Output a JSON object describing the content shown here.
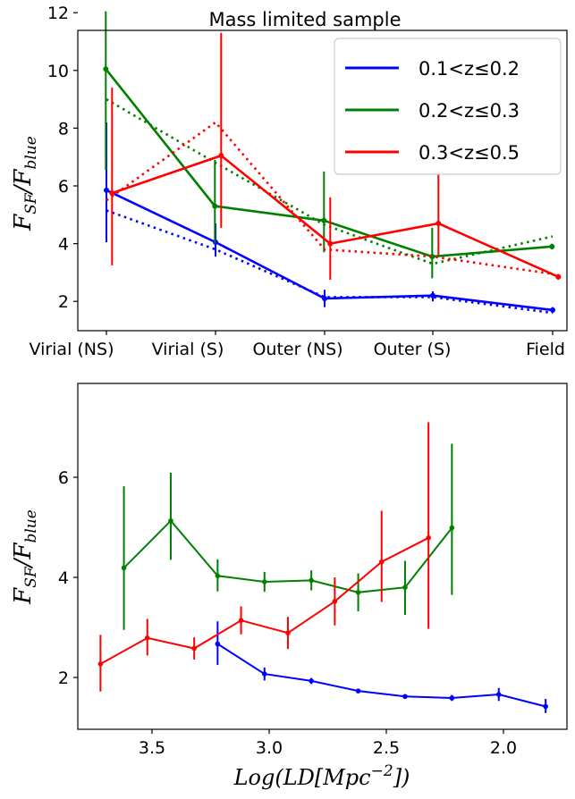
{
  "chart_data": [
    {
      "type": "line",
      "title": "Mass limited sample",
      "ylabel_main": "F",
      "ylabel_sub1": "SF",
      "ylabel_sep": "/F",
      "ylabel_sub2": "blue",
      "categories": [
        "Virial (NS)",
        "Virial (S)",
        "Outer (NS)",
        "Outer (S)",
        "Field"
      ],
      "ylim": [
        1,
        12
      ],
      "yticks": [
        "2",
        "4",
        "6",
        "8",
        "10",
        "12"
      ],
      "legend_position": "upper right",
      "series": [
        {
          "name": "0.1<z≤0.2",
          "color": "#0000ff",
          "values": [
            5.85,
            4.05,
            2.1,
            2.2,
            1.7
          ],
          "err_low": [
            1.8,
            0.5,
            0.3,
            0.2,
            0.1
          ],
          "err_high": [
            2.35,
            0.65,
            0.3,
            0.15,
            0.1
          ],
          "model": [
            5.15,
            3.8,
            2.15,
            2.15,
            1.6
          ]
        },
        {
          "name": "0.2<z≤0.3",
          "color": "#008000",
          "values": [
            10.05,
            5.3,
            4.8,
            3.55,
            3.9
          ],
          "err_low": [
            3.5,
            1.3,
            1.1,
            0.75,
            0.1
          ],
          "err_high": [
            2.0,
            1.6,
            1.7,
            1.0,
            0.1
          ],
          "model": [
            9.0,
            6.8,
            4.65,
            3.3,
            4.25
          ]
        },
        {
          "name": "0.3<z≤0.5",
          "color": "#ff0000",
          "values": [
            5.75,
            7.05,
            4.0,
            4.7,
            2.85
          ],
          "err_low": [
            2.5,
            2.5,
            1.25,
            1.1,
            0.1
          ],
          "err_high": [
            3.65,
            4.25,
            1.6,
            1.7,
            0.1
          ],
          "model": [
            5.5,
            8.2,
            3.8,
            3.55,
            2.95
          ]
        }
      ]
    },
    {
      "type": "line",
      "xlabel_main": "Log(LD[Mpc",
      "xlabel_sup": "−2",
      "xlabel_end": "])",
      "ylabel_main": "F",
      "ylabel_sub1": "SF",
      "ylabel_sep": "/F",
      "ylabel_sub2": "blue",
      "xlim": [
        3.85,
        1.75
      ],
      "ylim": [
        1.0,
        7.5
      ],
      "xticks": [
        "3.5",
        "3.0",
        "2.5",
        "2.0"
      ],
      "yticks": [
        "2",
        "4",
        "6"
      ],
      "series": [
        {
          "name": "",
          "color": "#0000ff",
          "x": [
            3.22,
            3.02,
            2.82,
            2.62,
            2.42,
            2.22,
            2.02,
            1.82
          ],
          "values": [
            2.67,
            2.07,
            1.93,
            1.73,
            1.62,
            1.59,
            1.66,
            1.42
          ],
          "err_low": [
            0.42,
            0.13,
            0.06,
            0.04,
            0.04,
            0.06,
            0.13,
            0.13
          ],
          "err_high": [
            0.45,
            0.13,
            0.06,
            0.04,
            0.04,
            0.06,
            0.13,
            0.15
          ]
        },
        {
          "name": "",
          "color": "#008000",
          "x": [
            3.62,
            3.42,
            3.22,
            3.02,
            2.82,
            2.62,
            2.42,
            2.22
          ],
          "values": [
            4.19,
            5.13,
            4.03,
            3.91,
            3.94,
            3.7,
            3.8,
            4.99
          ],
          "err_low": [
            1.24,
            0.78,
            0.31,
            0.2,
            0.2,
            0.38,
            0.55,
            1.34
          ],
          "err_high": [
            1.63,
            0.96,
            0.33,
            0.2,
            0.2,
            0.38,
            0.53,
            1.68
          ]
        },
        {
          "name": "",
          "color": "#ff0000",
          "x": [
            3.72,
            3.52,
            3.32,
            3.12,
            2.92,
            2.72,
            2.52,
            2.32
          ],
          "values": [
            2.27,
            2.79,
            2.58,
            3.14,
            2.89,
            3.52,
            4.31,
            4.79
          ],
          "err_low": [
            0.55,
            0.35,
            0.22,
            0.28,
            0.32,
            0.48,
            0.8,
            1.82
          ],
          "err_high": [
            0.58,
            0.38,
            0.22,
            0.28,
            0.32,
            0.48,
            1.02,
            2.31
          ]
        }
      ]
    }
  ]
}
